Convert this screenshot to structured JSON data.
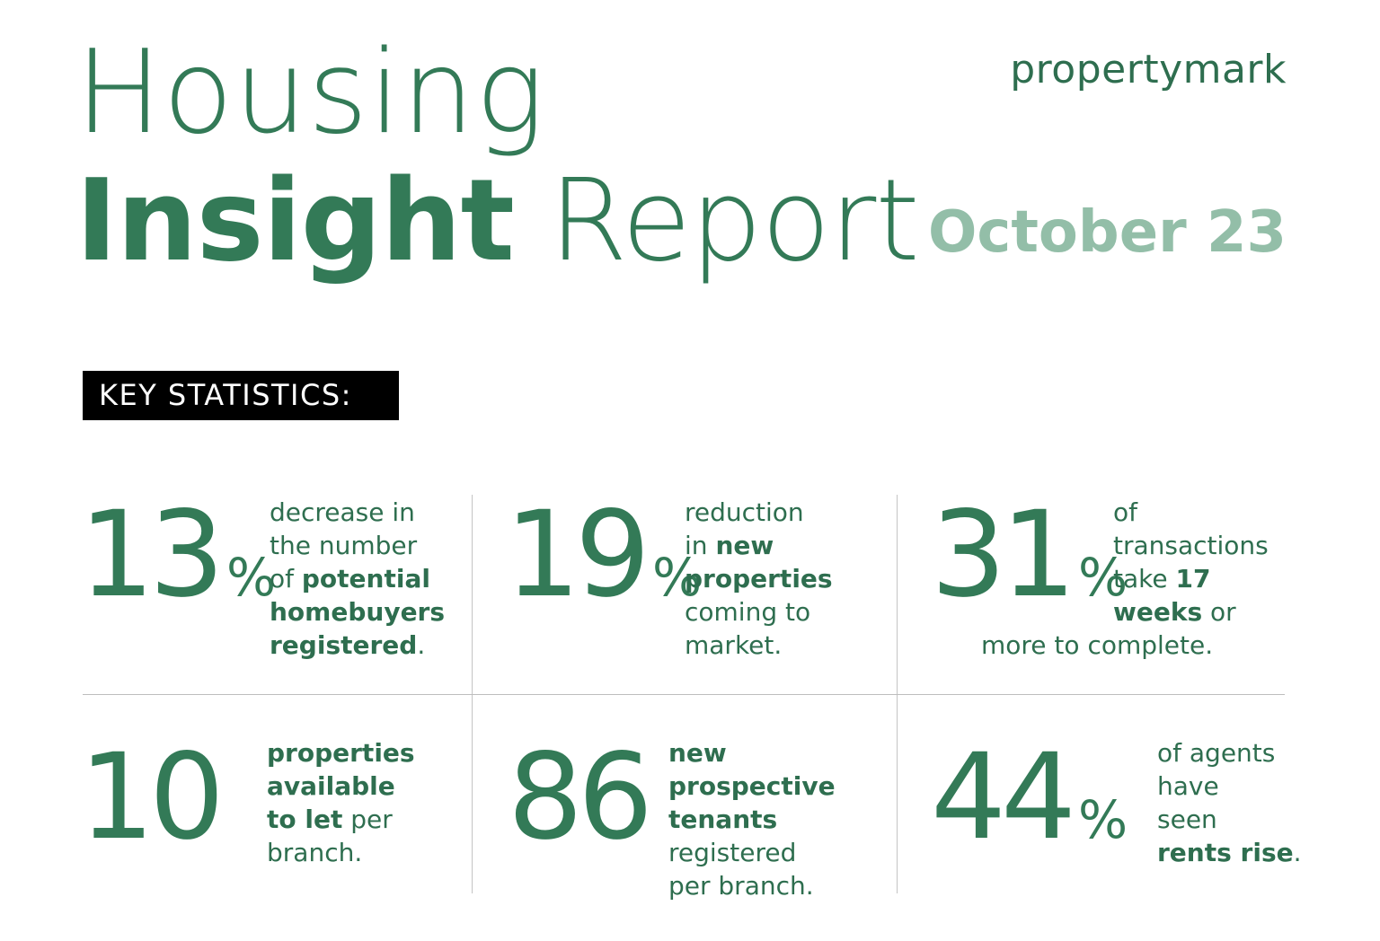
{
  "header": {
    "title_line1": "Housing",
    "title_bold": "Insight",
    "title_light": "Report",
    "brand": "propertymark",
    "date": "October 23"
  },
  "section_label": "KEY STATISTICS:",
  "percent_sign": "%",
  "stats": [
    {
      "value": "13",
      "unit": "%",
      "parts": [
        "decrease in",
        "the number",
        "of ",
        "potential",
        "homebuyers",
        "registered",
        "."
      ]
    },
    {
      "value": "19",
      "unit": "%",
      "parts": [
        "reduction",
        "in ",
        "new",
        "properties",
        "coming to",
        "market."
      ]
    },
    {
      "value": "31",
      "unit": "%",
      "parts": [
        "of",
        "transactions",
        "take ",
        "17",
        "weeks",
        " or",
        "more to complete."
      ]
    },
    {
      "value": "10",
      "unit": "",
      "parts": [
        "properties",
        "available",
        "to let",
        " per",
        "branch."
      ]
    },
    {
      "value": "86",
      "unit": "",
      "parts": [
        "new",
        "prospective",
        "tenants",
        "registered",
        "per branch."
      ]
    },
    {
      "value": "44",
      "unit": "%",
      "parts": [
        "of agents",
        "have",
        "seen",
        "rents rise",
        "."
      ]
    }
  ]
}
